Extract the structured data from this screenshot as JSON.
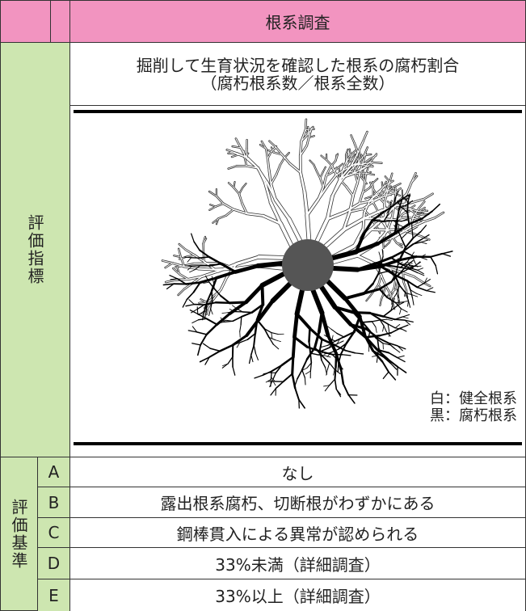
{
  "header": {
    "title": "根系調査"
  },
  "index": {
    "label": "評価指標",
    "description": [
      "掘削して生育状況を確認した根系の腐朽割合",
      "（腐朽根系数／根系全数）"
    ],
    "legend": [
      "白：健全根系",
      "黒：腐朽根系"
    ]
  },
  "criteria": {
    "label": "評価基準",
    "rows": [
      {
        "grade": "A",
        "text": "なし"
      },
      {
        "grade": "B",
        "text": "露出根系腐朽、切断根がわずかにある"
      },
      {
        "grade": "C",
        "text": "鋼棒貫入による異常が認められる"
      },
      {
        "grade": "D",
        "text": "33%未満（詳細調査）"
      },
      {
        "grade": "E",
        "text": "33%以上（詳細調査）"
      }
    ]
  }
}
